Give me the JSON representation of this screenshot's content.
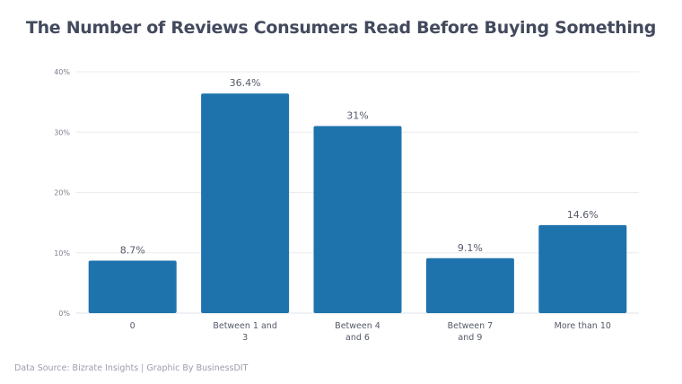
{
  "chart_data": {
    "type": "bar",
    "title": "The Number of Reviews Consumers Read Before Buying Something",
    "categories": [
      [
        "0"
      ],
      [
        "Between 1 and",
        "3"
      ],
      [
        "Between 4",
        "and 6"
      ],
      [
        "Between 7",
        "and 9"
      ],
      [
        "More than 10"
      ]
    ],
    "values": [
      8.7,
      36.4,
      31,
      9.1,
      14.6
    ],
    "data_labels": [
      "8.7%",
      "36.4%",
      "31%",
      "9.1%",
      "14.6%"
    ],
    "yticks": [
      0,
      10,
      20,
      30,
      40
    ],
    "ytick_labels": [
      "0%",
      "10%",
      "20%",
      "30%",
      "40%"
    ],
    "ylim": [
      0,
      40
    ],
    "grid": true,
    "xlabel": "",
    "ylabel": "",
    "colors": {
      "bar": "#1f73ad",
      "grid": "#ececf0",
      "text": "#555a6a"
    }
  },
  "footer": {
    "source": "Data Source: Bizrate Insights | Graphic By BusinessDIT"
  }
}
